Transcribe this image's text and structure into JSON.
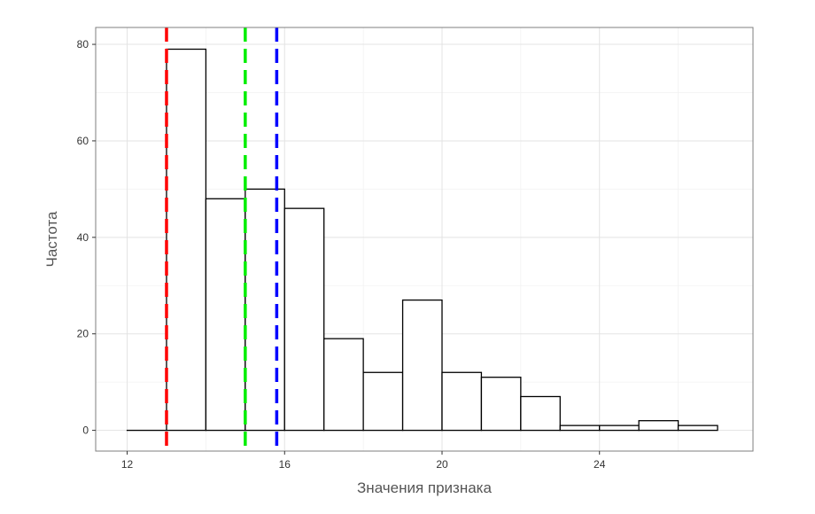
{
  "chart_data": {
    "type": "bar",
    "title": "",
    "xlabel": "Значения признака",
    "ylabel": "Частота",
    "xlim": [
      11.2,
      27.9
    ],
    "ylim": [
      -4.3,
      83.5
    ],
    "x_ticks": [
      12,
      16,
      20,
      24
    ],
    "y_ticks": [
      0,
      20,
      40,
      60,
      80
    ],
    "grid": true,
    "bins": [
      {
        "start": 12,
        "end": 13,
        "count": 0
      },
      {
        "start": 13,
        "end": 14,
        "count": 79
      },
      {
        "start": 14,
        "end": 15,
        "count": 48
      },
      {
        "start": 15,
        "end": 16,
        "count": 50
      },
      {
        "start": 16,
        "end": 17,
        "count": 46
      },
      {
        "start": 17,
        "end": 18,
        "count": 19
      },
      {
        "start": 18,
        "end": 19,
        "count": 12
      },
      {
        "start": 19,
        "end": 20,
        "count": 27
      },
      {
        "start": 20,
        "end": 21,
        "count": 12
      },
      {
        "start": 21,
        "end": 22,
        "count": 11
      },
      {
        "start": 22,
        "end": 23,
        "count": 7
      },
      {
        "start": 23,
        "end": 24,
        "count": 1
      },
      {
        "start": 24,
        "end": 25,
        "count": 1
      },
      {
        "start": 25,
        "end": 26,
        "count": 2
      },
      {
        "start": 26,
        "end": 27,
        "count": 1
      }
    ],
    "reference_lines": [
      {
        "x": 13.0,
        "color": "#ff0000",
        "style": "dashed"
      },
      {
        "x": 15.0,
        "color": "#00ee00",
        "style": "dashed"
      },
      {
        "x": 15.8,
        "color": "#0000ff",
        "style": "dashed"
      }
    ]
  }
}
